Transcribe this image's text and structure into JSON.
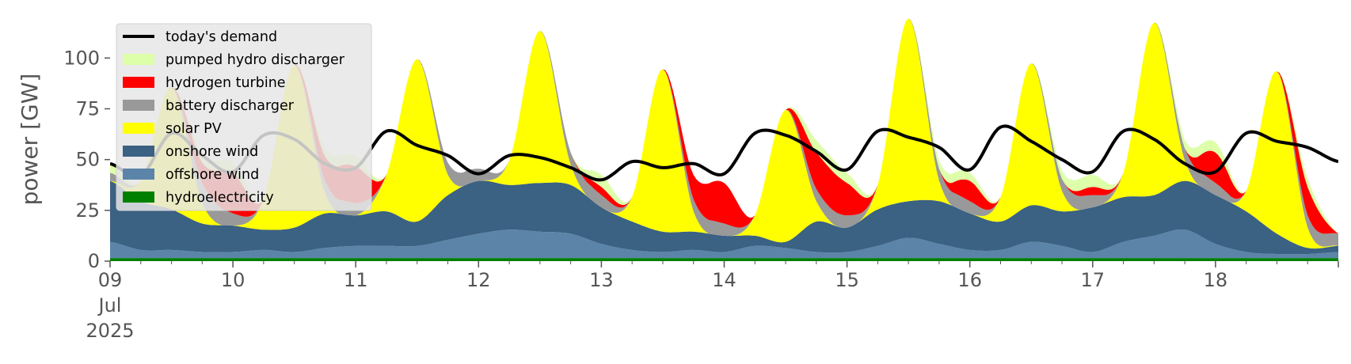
{
  "chart_data": {
    "type": "area",
    "stacked": true,
    "ylabel": "power [GW]",
    "xlabel": "",
    "ylim": [
      0,
      120
    ],
    "yticks": [
      0,
      25,
      50,
      75,
      100
    ],
    "xlim": [
      0,
      240
    ],
    "x_unit": "hours since 2025-07-09 00:00",
    "x_tick_labels": [
      {
        "hour": 0,
        "lines": [
          "09",
          "Jul",
          "2025"
        ]
      },
      {
        "hour": 24,
        "lines": [
          "10"
        ]
      },
      {
        "hour": 48,
        "lines": [
          "11"
        ]
      },
      {
        "hour": 72,
        "lines": [
          "12"
        ]
      },
      {
        "hour": 96,
        "lines": [
          "13"
        ]
      },
      {
        "hour": 120,
        "lines": [
          "14"
        ]
      },
      {
        "hour": 144,
        "lines": [
          "15"
        ]
      },
      {
        "hour": 168,
        "lines": [
          "16"
        ]
      },
      {
        "hour": 192,
        "lines": [
          "17"
        ]
      },
      {
        "hour": 216,
        "lines": [
          "18"
        ]
      }
    ],
    "grid": false,
    "legend_position": "top-left",
    "x_hours": [
      0,
      6,
      12,
      18,
      24,
      30,
      36,
      42,
      48,
      54,
      60,
      66,
      72,
      78,
      84,
      90,
      96,
      102,
      108,
      114,
      120,
      126,
      132,
      138,
      144,
      150,
      156,
      162,
      168,
      174,
      180,
      186,
      192,
      198,
      204,
      210,
      216,
      222,
      228,
      234,
      240
    ],
    "series": [
      {
        "name": "hydroelectricity",
        "color": "#008000",
        "values": [
          1.5,
          1.5,
          1.5,
          1.5,
          1.5,
          1.5,
          1.5,
          1.5,
          1.5,
          1.5,
          1.5,
          1.5,
          1.5,
          1.5,
          1.5,
          1.5,
          1.5,
          1.5,
          1.5,
          1.5,
          1.5,
          1.5,
          1.5,
          1.5,
          1.5,
          1.5,
          1.5,
          1.5,
          1.5,
          1.5,
          1.5,
          1.5,
          1.5,
          1.5,
          1.5,
          1.5,
          1.5,
          1.5,
          1.5,
          1.5,
          1.5
        ]
      },
      {
        "name": "offshore wind",
        "color": "#5b84a8",
        "values": [
          8,
          4,
          4,
          3,
          3,
          4,
          3,
          5,
          6,
          6,
          6,
          9,
          12,
          14,
          13,
          12,
          7,
          4,
          3,
          4,
          3,
          6,
          5,
          3,
          3,
          6,
          10,
          7,
          4,
          4,
          8,
          6,
          3,
          8,
          11,
          14,
          7,
          3,
          2,
          2,
          3
        ]
      },
      {
        "name": "onshore wind",
        "color": "#3b6183",
        "values": [
          30,
          24,
          20,
          14,
          13,
          10,
          12,
          17,
          15,
          17,
          12,
          22,
          26,
          22,
          24,
          24,
          18,
          14,
          10,
          9,
          8,
          5,
          3,
          15,
          12,
          18,
          18,
          21,
          18,
          14,
          18,
          17,
          22,
          22,
          20,
          24,
          24,
          20,
          10,
          3,
          3
        ]
      },
      {
        "name": "solar PV",
        "color": "#ffff00",
        "values": [
          0,
          10,
          60,
          10,
          0,
          15,
          80,
          10,
          0,
          18,
          80,
          10,
          0,
          12,
          75,
          10,
          0,
          12,
          80,
          10,
          0,
          10,
          65,
          10,
          0,
          12,
          90,
          10,
          0,
          12,
          70,
          10,
          0,
          12,
          85,
          10,
          0,
          10,
          80,
          10,
          0
        ]
      },
      {
        "name": "battery discharger",
        "color": "#999999",
        "values": [
          4,
          0,
          0,
          10,
          6,
          0,
          0,
          6,
          6,
          0,
          0,
          6,
          6,
          0,
          0,
          6,
          6,
          0,
          0,
          6,
          6,
          0,
          0,
          6,
          6,
          0,
          0,
          6,
          6,
          0,
          0,
          6,
          6,
          0,
          0,
          6,
          6,
          0,
          0,
          6,
          6
        ]
      },
      {
        "name": "hydrogen turbine",
        "color": "#ff0000",
        "values": [
          0,
          0,
          0,
          10,
          20,
          0,
          0,
          12,
          18,
          0,
          0,
          0,
          0,
          0,
          0,
          0,
          4,
          0,
          0,
          12,
          20,
          0,
          0,
          18,
          16,
          0,
          0,
          0,
          10,
          0,
          0,
          0,
          4,
          0,
          0,
          0,
          15,
          0,
          0,
          14,
          0
        ]
      },
      {
        "name": "pumped hydro discharger",
        "color": "#ddffaa",
        "values": [
          4,
          0,
          0,
          4,
          5,
          0,
          0,
          4,
          5,
          0,
          0,
          0,
          0,
          0,
          0,
          0,
          6,
          0,
          0,
          0,
          0,
          0,
          0,
          6,
          5,
          0,
          0,
          4,
          4,
          0,
          0,
          4,
          6,
          0,
          0,
          4,
          5,
          0,
          0,
          4,
          0
        ]
      }
    ],
    "demand": {
      "name": "today's demand",
      "color": "#000000",
      "values": [
        48,
        42,
        63,
        52,
        44,
        62,
        60,
        48,
        46,
        64,
        57,
        52,
        43,
        52,
        51,
        46,
        40,
        49,
        46,
        48,
        43,
        63,
        62,
        54,
        45,
        64,
        61,
        56,
        45,
        66,
        59,
        50,
        44,
        64,
        60,
        48,
        44,
        63,
        59,
        56,
        49
      ]
    },
    "legend_entries": [
      "today's demand",
      "pumped hydro discharger",
      "hydrogen turbine",
      "battery discharger",
      "solar PV",
      "onshore wind",
      "offshore wind",
      "hydroelectricity"
    ]
  }
}
